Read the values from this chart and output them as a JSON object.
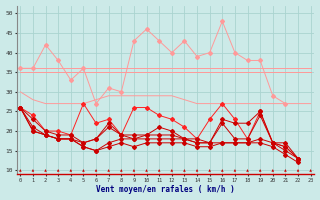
{
  "x": [
    0,
    1,
    2,
    3,
    4,
    5,
    6,
    7,
    8,
    9,
    10,
    11,
    12,
    13,
    14,
    15,
    16,
    17,
    18,
    19,
    20,
    21,
    22,
    23
  ],
  "line_rafales_upper1": [
    36,
    36,
    36,
    36,
    36,
    36,
    36,
    36,
    36,
    36,
    36,
    36,
    36,
    36,
    36,
    36,
    36,
    36,
    36,
    36,
    36,
    36,
    36,
    36
  ],
  "line_rafales_upper2": [
    35,
    35,
    35,
    35,
    35,
    35,
    35,
    35,
    35,
    35,
    35,
    35,
    35,
    35,
    35,
    35,
    35,
    35,
    35,
    35,
    35,
    35,
    35,
    35
  ],
  "line_rafales_mid": [
    30,
    28,
    27,
    27,
    27,
    27,
    28,
    29,
    29,
    29,
    29,
    29,
    29,
    28,
    27,
    27,
    27,
    27,
    27,
    27,
    27,
    27,
    27,
    27
  ],
  "line_rafales_spiky": [
    36,
    36,
    42,
    38,
    33,
    36,
    27,
    31,
    30,
    43,
    46,
    43,
    40,
    43,
    39,
    40,
    48,
    40,
    38,
    38,
    29,
    27,
    null,
    null
  ],
  "line_moyen1": [
    26,
    24,
    20,
    20,
    19,
    27,
    22,
    23,
    19,
    26,
    26,
    24,
    23,
    21,
    18,
    23,
    27,
    23,
    18,
    25,
    17,
    16,
    13,
    null
  ],
  "line_moyen2": [
    26,
    23,
    20,
    19,
    19,
    17,
    18,
    22,
    19,
    19,
    19,
    21,
    20,
    18,
    18,
    17,
    23,
    22,
    22,
    25,
    17,
    17,
    13,
    null
  ],
  "line_moyen3": [
    26,
    21,
    19,
    18,
    18,
    17,
    18,
    21,
    19,
    18,
    19,
    19,
    19,
    18,
    17,
    17,
    22,
    18,
    18,
    24,
    17,
    16,
    13,
    null
  ],
  "line_moyen4": [
    26,
    20,
    19,
    18,
    18,
    16,
    15,
    17,
    18,
    18,
    18,
    18,
    18,
    18,
    17,
    17,
    17,
    17,
    17,
    18,
    17,
    15,
    13,
    null
  ],
  "line_moyen5": [
    26,
    20,
    19,
    18,
    18,
    16,
    15,
    16,
    17,
    16,
    17,
    17,
    17,
    17,
    16,
    16,
    17,
    17,
    17,
    17,
    16,
    14,
    12,
    null
  ],
  "bg_color": "#cceae8",
  "grid_color": "#aad4d0",
  "color_light": "#ff9999",
  "color_bright": "#ff2222",
  "color_dark": "#cc0000",
  "xlabel": "Vent moyen/en rafales ( km/h )",
  "yticks": [
    10,
    15,
    20,
    25,
    30,
    35,
    40,
    45,
    50
  ],
  "ylim": [
    9,
    52
  ],
  "xlim": [
    -0.3,
    23.3
  ]
}
